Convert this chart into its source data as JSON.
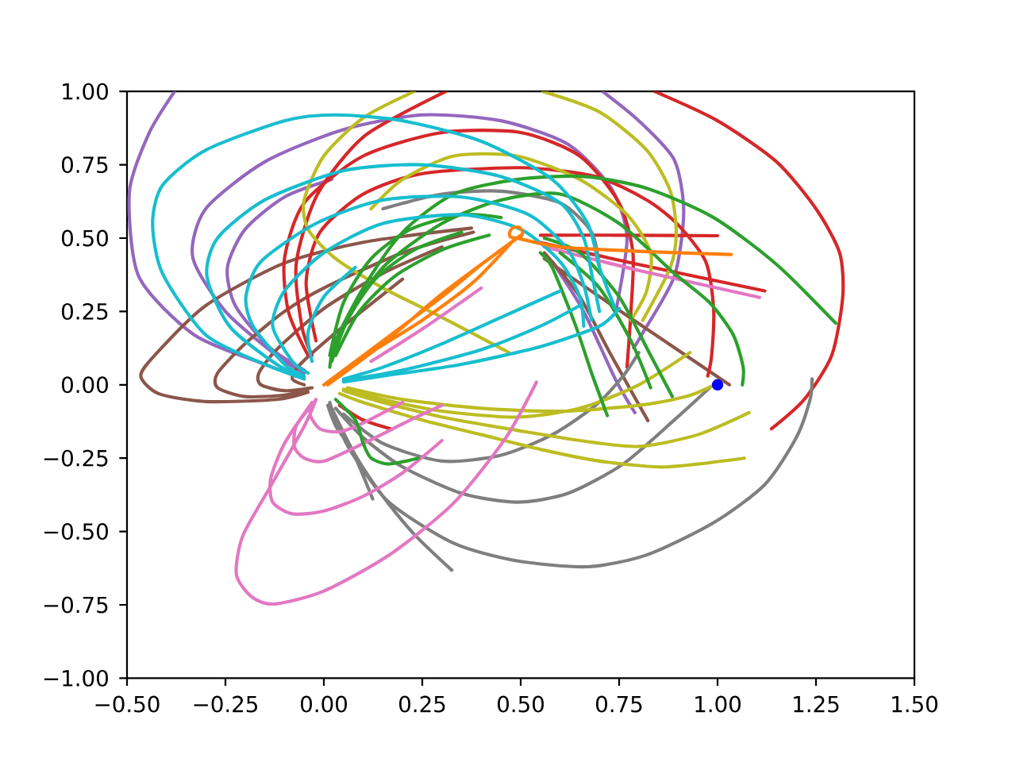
{
  "chart_data": {
    "type": "line",
    "xlim": [
      -0.5,
      1.5
    ],
    "ylim": [
      -1,
      1
    ],
    "xticks": [
      {
        "value": -0.5,
        "label": "−0.50"
      },
      {
        "value": -0.25,
        "label": "−0.25"
      },
      {
        "value": 0,
        "label": "0.00"
      },
      {
        "value": 0.25,
        "label": "0.25"
      },
      {
        "value": 0.5,
        "label": "0.50"
      },
      {
        "value": 0.75,
        "label": "0.75"
      },
      {
        "value": 1,
        "label": "1.00"
      },
      {
        "value": 1.25,
        "label": "1.25"
      },
      {
        "value": 1.5,
        "label": "1.50"
      }
    ],
    "yticks": [
      {
        "value": -1,
        "label": "−1.00"
      },
      {
        "value": -0.75,
        "label": "−0.75"
      },
      {
        "value": -0.5,
        "label": "−0.50"
      },
      {
        "value": -0.25,
        "label": "−0.25"
      },
      {
        "value": 0,
        "label": "0.00"
      },
      {
        "value": 0.25,
        "label": "0.25"
      },
      {
        "value": 0.5,
        "label": "0.50"
      },
      {
        "value": 0.75,
        "label": "0.75"
      },
      {
        "value": 1,
        "label": "1.00"
      }
    ],
    "series": [
      {
        "color": "#9467bd",
        "x": [
          -0.05,
          -0.15,
          -0.329,
          -0.47,
          -0.494,
          -0.445,
          -0.379,
          null,
          0.708,
          0.8,
          0.89,
          0.914,
          0.89,
          0.807,
          0.787,
          null,
          -0.05,
          -0.12,
          -0.25,
          -0.333,
          -0.3,
          -0.15,
          0.05,
          0.25,
          0.45,
          0.62,
          0.73,
          0.77,
          0.74,
          null,
          -0.05,
          -0.14,
          -0.225,
          -0.245,
          -0.2,
          -0.1,
          0.02,
          null,
          0.58,
          0.66,
          0.74,
          0.79
        ],
        "values": [
          0.02,
          0.07,
          0.17,
          0.369,
          0.656,
          0.855,
          1.0,
          null,
          1.0,
          0.9,
          0.767,
          0.59,
          0.369,
          0.17,
          0.126,
          null,
          0.04,
          0.1,
          0.25,
          0.435,
          0.6,
          0.76,
          0.87,
          0.92,
          0.9,
          0.82,
          0.67,
          0.5,
          0.24,
          null,
          0.05,
          0.13,
          0.27,
          0.4,
          0.53,
          0.64,
          0.7,
          null,
          0.42,
          0.25,
          0.02,
          -0.095
        ]
      },
      {
        "color": "#8c564b",
        "x": [
          -0.04,
          -0.12,
          -0.3,
          -0.42,
          -0.465,
          -0.43,
          -0.3,
          -0.1,
          0.105,
          0.375,
          null,
          -0.04,
          -0.1,
          -0.2,
          -0.27,
          -0.27,
          -0.2,
          -0.1,
          0.0,
          0.2,
          0.38,
          null,
          -0.03,
          -0.1,
          -0.16,
          -0.165,
          -0.12,
          0.0,
          0.15,
          0.3,
          null,
          -0.05,
          -0.08,
          -0.06,
          0.05,
          0.2,
          null,
          0.56,
          0.76,
          1.03,
          null,
          0.56,
          0.65,
          0.73,
          0.823
        ],
        "values": [
          -0.025,
          -0.05,
          -0.057,
          -0.03,
          0.03,
          0.1,
          0.27,
          0.415,
          0.487,
          0.534,
          null,
          -0.015,
          -0.035,
          -0.04,
          -0.01,
          0.04,
          0.14,
          0.25,
          0.33,
          0.45,
          0.52,
          null,
          -0.01,
          -0.02,
          0.0,
          0.04,
          0.12,
          0.26,
          0.38,
          0.47,
          null,
          0.0,
          0.02,
          0.07,
          0.2,
          0.36,
          null,
          0.43,
          0.245,
          0.0,
          null,
          0.45,
          0.3,
          0.1,
          -0.122
        ]
      },
      {
        "color": "#d62728",
        "x": [
          -0.03,
          -0.056,
          -0.07,
          -0.016,
          0.105,
          0.31,
          null,
          0.84,
          1.0,
          1.15,
          1.25,
          1.31,
          1.318,
          1.29,
          1.22,
          1.137,
          null,
          -0.04,
          -0.09,
          -0.1,
          -0.05,
          0.1,
          0.3,
          0.5,
          0.65,
          0.75,
          0.785,
          0.78,
          0.77,
          null,
          0.55,
          0.75,
          1.0,
          null,
          0.55,
          0.8,
          1.12,
          null,
          -0.02,
          -0.045,
          -0.01,
          0.1,
          0.25,
          0.5,
          0.69,
          0.82,
          0.9,
          0.97,
          0.99,
          0.985,
          0.975,
          null,
          0.04,
          0.1,
          0.17
        ],
        "values": [
          0.1,
          0.2,
          0.415,
          0.65,
          0.85,
          1.0,
          null,
          1.0,
          0.9,
          0.76,
          0.6,
          0.45,
          0.3,
          0.1,
          -0.05,
          -0.15,
          null,
          0.1,
          0.25,
          0.43,
          0.62,
          0.78,
          0.86,
          0.86,
          0.78,
          0.62,
          0.45,
          0.25,
          0.06,
          null,
          0.51,
          0.51,
          0.508,
          null,
          0.485,
          0.41,
          0.32,
          null,
          0.15,
          0.35,
          0.52,
          0.65,
          0.72,
          0.74,
          0.71,
          0.63,
          0.545,
          0.42,
          0.26,
          0.1,
          0.03,
          null,
          -0.07,
          -0.12,
          -0.15
        ]
      },
      {
        "color": "#7f7f7f",
        "x": [
          0.015,
          0.03,
          0.07,
          0.165,
          0.33,
          0.49,
          0.67,
          0.82,
          0.99,
          1.12,
          1.2,
          1.235,
          1.24,
          null,
          0.03,
          0.1,
          0.2,
          0.35,
          0.49,
          0.62,
          0.76,
          0.89,
          0.98,
          null,
          0.02,
          0.08,
          0.15,
          0.23,
          0.325,
          null,
          0.01,
          0.03,
          0.07,
          0.1,
          0.124,
          null,
          0.05,
          0.15,
          0.3,
          0.45,
          0.58,
          0.69,
          0.76,
          0.8,
          null,
          0.15,
          0.3,
          0.45,
          0.6,
          0.68,
          0.7
        ],
        "values": [
          -0.06,
          -0.12,
          -0.23,
          -0.4,
          -0.54,
          -0.6,
          -0.62,
          -0.58,
          -0.47,
          -0.34,
          -0.18,
          -0.05,
          0.02,
          null,
          -0.08,
          -0.18,
          -0.28,
          -0.37,
          -0.4,
          -0.37,
          -0.27,
          -0.12,
          -0.01,
          null,
          -0.08,
          -0.24,
          -0.38,
          -0.51,
          -0.632,
          null,
          -0.07,
          -0.14,
          -0.22,
          -0.31,
          -0.389,
          null,
          -0.1,
          -0.2,
          -0.26,
          -0.24,
          -0.17,
          -0.07,
          0.03,
          0.11,
          null,
          0.6,
          0.65,
          0.66,
          0.62,
          0.52,
          0.4
        ]
      },
      {
        "color": "#bcbd22",
        "x": [
          0.47,
          0.3,
          0.15,
          0.03,
          -0.04,
          -0.05,
          0.0,
          0.1,
          0.23,
          null,
          0.556,
          0.7,
          0.82,
          0.88,
          0.895,
          0.88,
          0.81,
          null,
          0.12,
          0.2,
          0.33,
          0.49,
          0.65,
          0.77,
          0.83,
          0.82,
          0.78,
          null,
          0.04,
          0.1,
          0.25,
          0.4,
          0.55,
          0.7,
          0.85,
          0.95,
          1.068,
          null,
          0.05,
          0.15,
          0.3,
          0.49,
          0.65,
          0.8,
          0.95,
          1.08,
          null,
          0.05,
          0.15,
          0.3,
          0.49,
          0.65,
          0.8,
          0.93,
          null,
          0.06,
          0.2,
          0.4,
          0.6,
          0.8,
          0.92,
          0.985
        ],
        "values": [
          0.11,
          0.23,
          0.33,
          0.43,
          0.53,
          0.63,
          0.78,
          0.91,
          1.0,
          null,
          1.0,
          0.93,
          0.8,
          0.66,
          0.52,
          0.4,
          0.22,
          null,
          0.6,
          0.7,
          0.78,
          0.78,
          0.7,
          0.58,
          0.45,
          0.32,
          0.22,
          null,
          -0.03,
          -0.06,
          -0.12,
          -0.17,
          -0.22,
          -0.26,
          -0.28,
          -0.27,
          -0.25,
          null,
          -0.02,
          -0.06,
          -0.11,
          -0.155,
          -0.19,
          -0.21,
          -0.17,
          -0.095,
          null,
          -0.015,
          -0.05,
          -0.09,
          -0.11,
          -0.08,
          0.0,
          0.11,
          null,
          -0.01,
          -0.05,
          -0.08,
          -0.09,
          -0.07,
          -0.04,
          -0.005
        ]
      },
      {
        "color": "#e377c2",
        "x": [
          -0.02,
          -0.049,
          -0.132,
          -0.206,
          -0.222,
          -0.181,
          -0.124,
          0,
          0.165,
          0.329,
          0.461,
          0.54,
          null,
          -0.03,
          -0.1,
          -0.135,
          -0.13,
          -0.08,
          0.0,
          0.1,
          0.2,
          0.3,
          null,
          -0.03,
          -0.07,
          -0.075,
          -0.05,
          0.0,
          0.1,
          0.22,
          0.3,
          null,
          -0.02,
          -0.035,
          -0.01,
          0.04,
          0.1,
          0.2,
          null,
          0.56,
          0.8,
          1.107,
          null,
          0.12,
          0.25,
          0.4
        ],
        "values": [
          -0.05,
          -0.139,
          -0.338,
          -0.515,
          -0.648,
          -0.725,
          -0.747,
          -0.703,
          -0.581,
          -0.404,
          -0.183,
          0.009,
          null,
          -0.06,
          -0.2,
          -0.32,
          -0.4,
          -0.44,
          -0.43,
          -0.38,
          -0.3,
          -0.19,
          null,
          -0.07,
          -0.14,
          -0.21,
          -0.25,
          -0.26,
          -0.2,
          -0.12,
          -0.07,
          null,
          -0.05,
          -0.1,
          -0.15,
          -0.16,
          -0.13,
          -0.06,
          null,
          0.47,
          0.39,
          0.298,
          null,
          0.08,
          0.19,
          0.33
        ]
      },
      {
        "color": "#2ca02c",
        "x": [
          0.015,
          0.03,
          0.1,
          0.2,
          0.33,
          0.49,
          0.66,
          0.82,
          0.99,
          1.15,
          1.3,
          null,
          0.02,
          0.05,
          0.15,
          0.3,
          0.45,
          0.6,
          0.75,
          0.89,
          0.98,
          1.04,
          1.065,
          1.063,
          null,
          0.55,
          0.58,
          0.64,
          0.68,
          0.72,
          null,
          0.56,
          0.65,
          0.75,
          0.83,
          0.885,
          null,
          0.6,
          0.7,
          0.78,
          0.83,
          null,
          0.03,
          0.08,
          0.1,
          0.12,
          0.165,
          0.24,
          null,
          0.02,
          0.06,
          0.13,
          0.23,
          0.35,
          null,
          0.015,
          0.05,
          0.12,
          0.22,
          0.35,
          0.45,
          null,
          0.03,
          0.09,
          0.18,
          0.3,
          0.42
        ],
        "values": [
          0.06,
          0.15,
          0.33,
          0.52,
          0.65,
          0.7,
          0.71,
          0.67,
          0.57,
          0.41,
          0.21,
          null,
          0.08,
          0.2,
          0.4,
          0.55,
          0.63,
          0.65,
          0.55,
          0.38,
          0.28,
          0.17,
          0.06,
          0.0,
          null,
          0.45,
          0.4,
          0.2,
          0.04,
          -0.105,
          null,
          0.5,
          0.45,
          0.3,
          0.1,
          -0.04,
          null,
          0.45,
          0.33,
          0.15,
          -0.01,
          null,
          -0.05,
          -0.12,
          -0.2,
          -0.25,
          -0.27,
          -0.25,
          null,
          0.08,
          0.22,
          0.36,
          0.46,
          0.52,
          null,
          0.1,
          0.28,
          0.43,
          0.53,
          0.58,
          0.57,
          null,
          0.1,
          0.25,
          0.37,
          0.46,
          0.51
        ]
      },
      {
        "color": "#17becf",
        "x": [
          -0.05,
          -0.15,
          -0.3,
          -0.41,
          -0.435,
          -0.41,
          -0.3,
          -0.1,
          0.03,
          0.2,
          0.4,
          0.58,
          0.67,
          0.7,
          0.74,
          null,
          -0.05,
          -0.12,
          -0.24,
          -0.297,
          -0.27,
          -0.15,
          0.05,
          0.25,
          0.45,
          0.6,
          0.66,
          0.68,
          0.7,
          null,
          -0.05,
          -0.1,
          -0.18,
          -0.198,
          -0.16,
          -0.02,
          0.15,
          0.35,
          0.52,
          0.62,
          0.66,
          0.68,
          null,
          -0.04,
          -0.08,
          -0.13,
          -0.1,
          0.0,
          0.15,
          0.35,
          0.5,
          0.6,
          0.65,
          0.66,
          null,
          0.05,
          0.15,
          0.35,
          0.55,
          0.7,
          0.75,
          null,
          0.05,
          0.2,
          0.4,
          0.55,
          0.65,
          null,
          0.05,
          0.15,
          0.3,
          0.45,
          0.6,
          null,
          -0.03,
          -0.04,
          0.0,
          0.08
        ],
        "values": [
          0.02,
          0.07,
          0.17,
          0.38,
          0.55,
          0.68,
          0.8,
          0.9,
          0.92,
          0.9,
          0.83,
          0.7,
          0.55,
          0.4,
          0.26,
          null,
          0.025,
          0.07,
          0.2,
          0.37,
          0.5,
          0.63,
          0.73,
          0.75,
          0.71,
          0.62,
          0.5,
          0.38,
          0.25,
          null,
          0.03,
          0.07,
          0.2,
          0.3,
          0.42,
          0.55,
          0.63,
          0.64,
          0.58,
          0.46,
          0.34,
          0.22,
          null,
          0.04,
          0.08,
          0.2,
          0.32,
          0.45,
          0.55,
          0.58,
          0.53,
          0.42,
          0.3,
          0.2,
          null,
          0.01,
          0.03,
          0.07,
          0.13,
          0.2,
          0.26,
          null,
          0.015,
          0.05,
          0.12,
          0.2,
          0.27,
          null,
          0.02,
          0.06,
          0.14,
          0.23,
          0.32,
          null,
          0.08,
          0.18,
          0.3,
          0.4
        ]
      },
      {
        "color": "#ff7f0e",
        "x": [
          0,
          0.1,
          0.2,
          0.3,
          0.4,
          0.47,
          0.488,
          0.473,
          0.472,
          0.48,
          0.495,
          0.504,
          0.503,
          0.495,
          0.49,
          0.6,
          0.8,
          1.035,
          null,
          0.02,
          0.15,
          0.3,
          0.45,
          0.5,
          null,
          0.01,
          0.12,
          0.25,
          0.38,
          0.48
        ],
        "values": [
          0,
          0.1,
          0.2,
          0.3,
          0.41,
          0.48,
          0.497,
          0.505,
          0.52,
          0.535,
          0.537,
          0.525,
          0.51,
          0.5,
          0.5,
          0.47,
          0.455,
          0.444,
          null,
          0.01,
          0.14,
          0.31,
          0.46,
          0.51,
          null,
          0.0,
          0.11,
          0.22,
          0.35,
          0.49
        ]
      },
      {
        "type": "scatter",
        "marker": "circle",
        "color": "#0000ff",
        "x": [
          1.0
        ],
        "values": [
          0.0
        ]
      }
    ]
  }
}
